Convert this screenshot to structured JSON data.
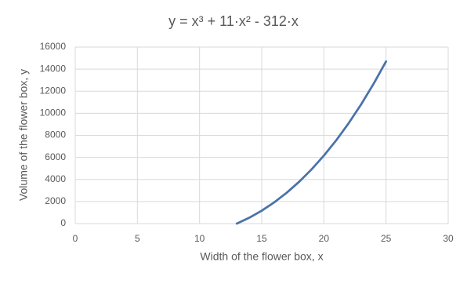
{
  "chart_data": {
    "type": "line",
    "title": "y = x³ + 11·x² - 312·x",
    "x_label": "Width of the flower box, x",
    "y_label": "Volume of the flower box, y",
    "x": [
      13,
      14,
      15,
      16,
      17,
      18,
      19,
      20,
      21,
      22,
      23,
      24,
      25
    ],
    "values": [
      0,
      532,
      1170,
      1920,
      2788,
      3780,
      4902,
      6160,
      7560,
      9108,
      10810,
      12672,
      14700
    ],
    "color": "#4a73a8",
    "xlim": [
      0,
      30
    ],
    "xticks": [
      0,
      5,
      10,
      15,
      20,
      25,
      30
    ],
    "ylim": [
      0,
      16000
    ],
    "yticks": [
      0,
      2000,
      4000,
      6000,
      8000,
      10000,
      12000,
      14000,
      16000
    ],
    "grid": true
  }
}
